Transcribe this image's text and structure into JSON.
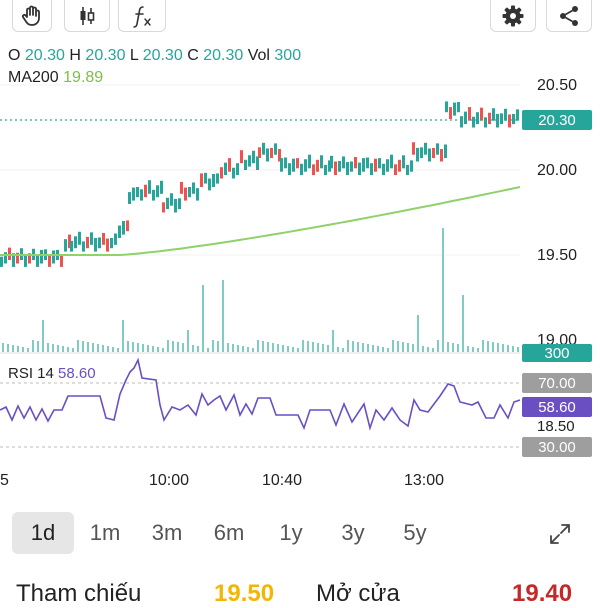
{
  "toolbar": {
    "left": [
      {
        "icon": "hand-icon"
      },
      {
        "icon": "candlestick-icon"
      },
      {
        "icon": "function-icon"
      }
    ],
    "right": [
      {
        "icon": "gear-icon"
      },
      {
        "icon": "share-icon"
      }
    ]
  },
  "ohlc": {
    "o_label": "O",
    "o": "20.30",
    "h_label": "H",
    "h": "20.30",
    "l_label": "L",
    "l": "20.30",
    "c_label": "C",
    "c": "20.30",
    "vol_label": "Vol",
    "vol": "300"
  },
  "ma": {
    "label": "MA200",
    "value": "19.89"
  },
  "rsi": {
    "label": "RSI 14",
    "value": "58.60"
  },
  "price_axis": {
    "labels": [
      "20.50",
      "20.00",
      "19.50",
      "19.00"
    ],
    "current_price": "20.30",
    "current_volume": "300"
  },
  "rsi_axis": {
    "upper": "70.00",
    "current": "58.60",
    "mid": "18.50",
    "lower": "30.00"
  },
  "time_axis": {
    "labels": [
      "5",
      "10:00",
      "10:40",
      "13:00"
    ]
  },
  "periods": {
    "items": [
      "1d",
      "1m",
      "3m",
      "6m",
      "1y",
      "3y",
      "5y"
    ],
    "active": "1d"
  },
  "footer": {
    "ref_label": "Tham chiếu",
    "ref_value": "19.50",
    "open_label": "Mở cửa",
    "open_value": "19.40"
  },
  "colors": {
    "up": "#26a69a",
    "down": "#ef5350",
    "ma": "#8fd16a",
    "rsi": "#6a4fc3",
    "ref": "#f2b705",
    "open": "#c62828",
    "volume": "#80cbc4"
  }
}
